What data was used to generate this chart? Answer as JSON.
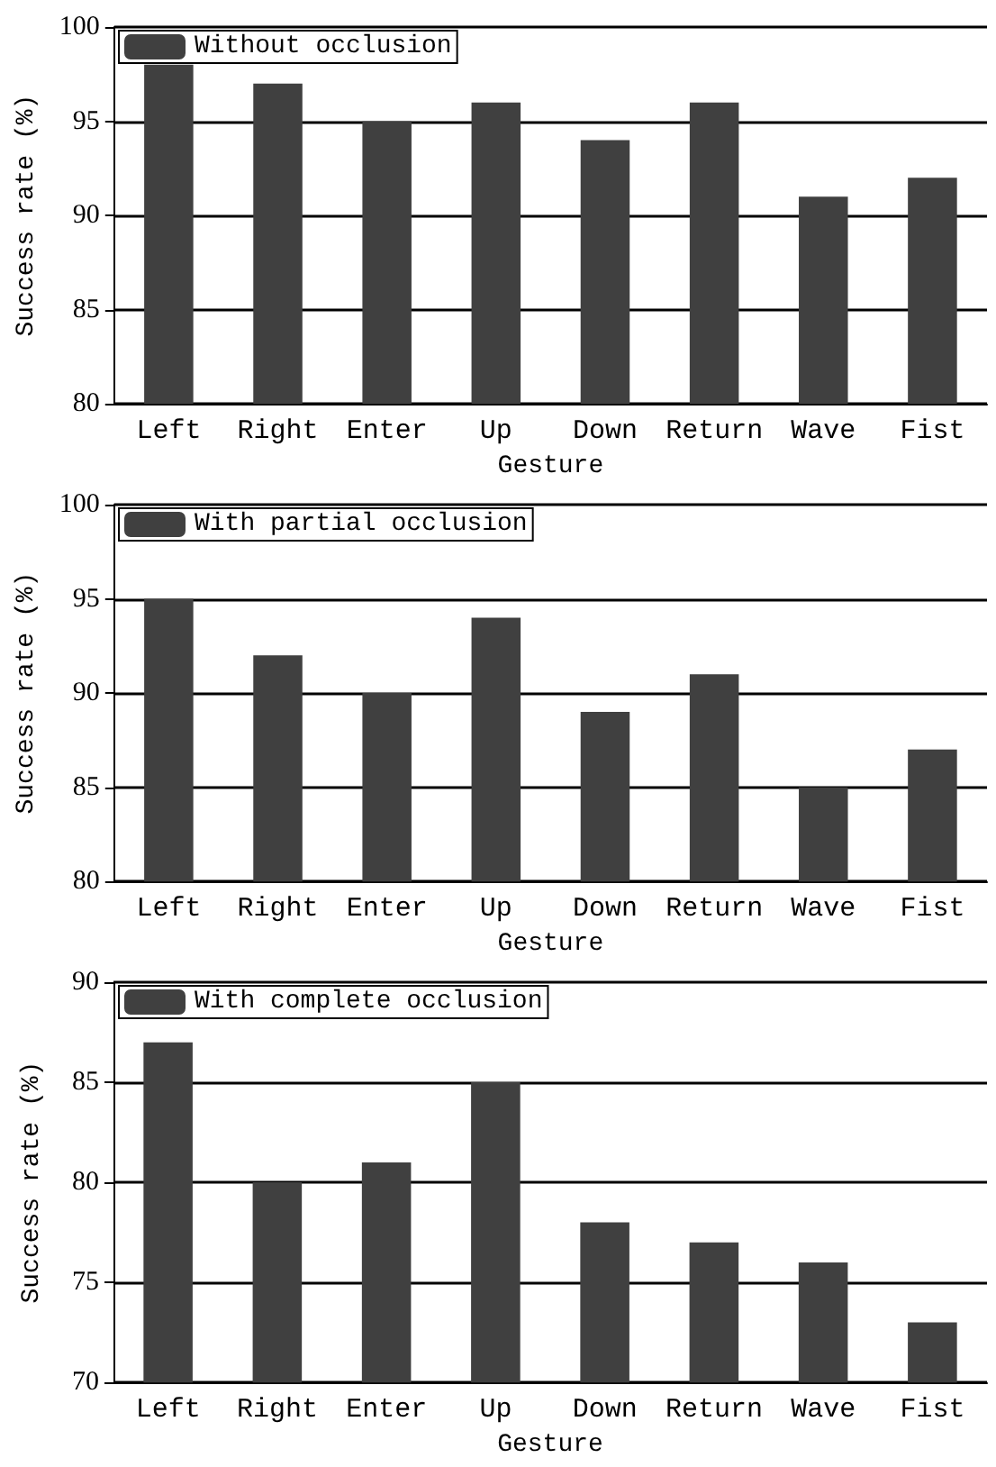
{
  "chart_data": [
    {
      "type": "bar",
      "xlabel": "Gesture",
      "ylabel": "Success rate (%)",
      "categories": [
        "Left",
        "Right",
        "Enter",
        "Up",
        "Down",
        "Return",
        "Wave",
        "Fist"
      ],
      "series": [
        {
          "name": "Without occlusion",
          "color": "#404040",
          "values": [
            98,
            97,
            95,
            96,
            94,
            96,
            91,
            92
          ]
        }
      ],
      "ylim": [
        80,
        100
      ],
      "yticks": [
        80,
        85,
        90,
        95,
        100
      ],
      "grid": "y",
      "legend": "top left"
    },
    {
      "type": "bar",
      "xlabel": "Gesture",
      "ylabel": "Success rate (%)",
      "categories": [
        "Left",
        "Right",
        "Enter",
        "Up",
        "Down",
        "Return",
        "Wave",
        "Fist"
      ],
      "series": [
        {
          "name": "With partial occlusion",
          "color": "#404040",
          "values": [
            95,
            92,
            90,
            94,
            89,
            91,
            85,
            87
          ]
        }
      ],
      "ylim": [
        80,
        100
      ],
      "yticks": [
        80,
        85,
        90,
        95,
        100
      ],
      "grid": "y",
      "legend": "top left"
    },
    {
      "type": "bar",
      "xlabel": "Gesture",
      "ylabel": "Success rate (%)",
      "categories": [
        "Left",
        "Right",
        "Enter",
        "Up",
        "Down",
        "Return",
        "Wave",
        "Fist"
      ],
      "series": [
        {
          "name": "With complete occlusion",
          "color": "#404040",
          "values": [
            87,
            80,
            81,
            85,
            78,
            77,
            76,
            73
          ]
        }
      ],
      "ylim": [
        70,
        90
      ],
      "yticks": [
        70,
        75,
        80,
        85,
        90
      ],
      "grid": "y",
      "legend": "top left"
    }
  ]
}
